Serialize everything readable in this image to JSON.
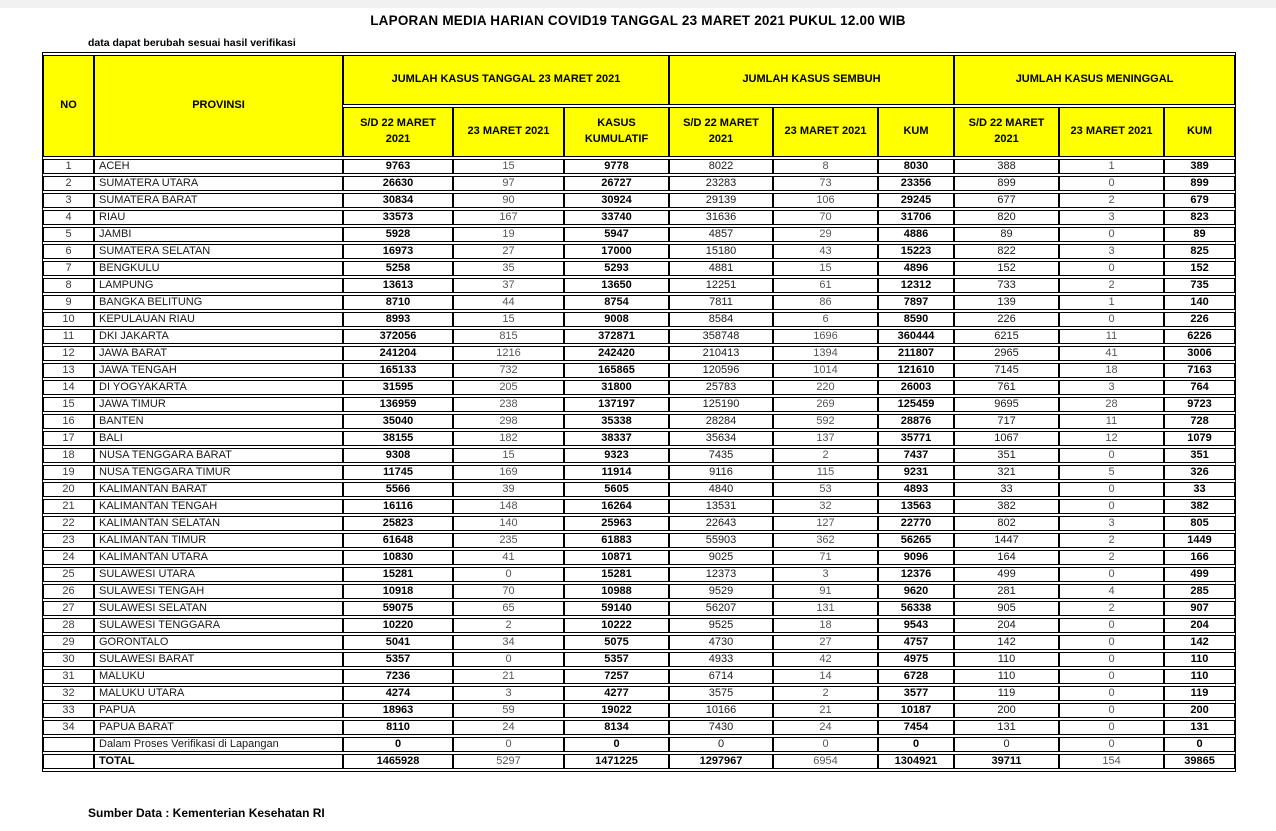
{
  "page": {
    "title": "LAPORAN MEDIA HARIAN COVID19 TANGGAL 23 MARET 2021 PUKUL 12.00 WIB",
    "note": "data dapat berubah sesuai hasil verifikasi",
    "source": "Sumber Data : Kementerian Kesehatan RI"
  },
  "colors": {
    "header_bg": "#FFFF00",
    "border": "#000000",
    "muted_number": "#555555"
  },
  "table": {
    "col_no": "NO",
    "col_provinsi": "PROVINSI",
    "groups": [
      {
        "label": "JUMLAH KASUS TANGGAL 23 MARET 2021",
        "subcolumns": [
          "S/D 22 MARET 2021",
          "23 MARET 2021",
          "KASUS KUMULATIF"
        ]
      },
      {
        "label": "JUMLAH KASUS SEMBUH",
        "subcolumns": [
          "S/D 22 MARET 2021",
          "23 MARET 2021",
          "KUM"
        ]
      },
      {
        "label": "JUMLAH KASUS MENINGGAL",
        "subcolumns": [
          "S/D 22 MARET 2021",
          "23 MARET 2021",
          "KUM"
        ]
      }
    ],
    "rows": [
      [
        1,
        "ACEH",
        9763,
        15,
        9778,
        8022,
        8,
        8030,
        388,
        1,
        389
      ],
      [
        2,
        "SUMATERA UTARA",
        26630,
        97,
        26727,
        23283,
        73,
        23356,
        899,
        0,
        899
      ],
      [
        3,
        "SUMATERA BARAT",
        30834,
        90,
        30924,
        29139,
        106,
        29245,
        677,
        2,
        679
      ],
      [
        4,
        "RIAU",
        33573,
        167,
        33740,
        31636,
        70,
        31706,
        820,
        3,
        823
      ],
      [
        5,
        "JAMBI",
        5928,
        19,
        5947,
        4857,
        29,
        4886,
        89,
        0,
        89
      ],
      [
        6,
        "SUMATERA SELATAN",
        16973,
        27,
        17000,
        15180,
        43,
        15223,
        822,
        3,
        825
      ],
      [
        7,
        "BENGKULU",
        5258,
        35,
        5293,
        4881,
        15,
        4896,
        152,
        0,
        152
      ],
      [
        8,
        "LAMPUNG",
        13613,
        37,
        13650,
        12251,
        61,
        12312,
        733,
        2,
        735
      ],
      [
        9,
        "BANGKA BELITUNG",
        8710,
        44,
        8754,
        7811,
        86,
        7897,
        139,
        1,
        140
      ],
      [
        10,
        "KEPULAUAN RIAU",
        8993,
        15,
        9008,
        8584,
        6,
        8590,
        226,
        0,
        226
      ],
      [
        11,
        "DKI JAKARTA",
        372056,
        815,
        372871,
        358748,
        1696,
        360444,
        6215,
        11,
        6226
      ],
      [
        12,
        "JAWA BARAT",
        241204,
        1216,
        242420,
        210413,
        1394,
        211807,
        2965,
        41,
        3006
      ],
      [
        13,
        "JAWA TENGAH",
        165133,
        732,
        165865,
        120596,
        1014,
        121610,
        7145,
        18,
        7163
      ],
      [
        14,
        "DI YOGYAKARTA",
        31595,
        205,
        31800,
        25783,
        220,
        26003,
        761,
        3,
        764
      ],
      [
        15,
        "JAWA TIMUR",
        136959,
        238,
        137197,
        125190,
        269,
        125459,
        9695,
        28,
        9723
      ],
      [
        16,
        "BANTEN",
        35040,
        298,
        35338,
        28284,
        592,
        28876,
        717,
        11,
        728
      ],
      [
        17,
        "BALI",
        38155,
        182,
        38337,
        35634,
        137,
        35771,
        1067,
        12,
        1079
      ],
      [
        18,
        "NUSA TENGGARA BARAT",
        9308,
        15,
        9323,
        7435,
        2,
        7437,
        351,
        0,
        351
      ],
      [
        19,
        "NUSA TENGGARA TIMUR",
        11745,
        169,
        11914,
        9116,
        115,
        9231,
        321,
        5,
        326
      ],
      [
        20,
        "KALIMANTAN BARAT",
        5566,
        39,
        5605,
        4840,
        53,
        4893,
        33,
        0,
        33
      ],
      [
        21,
        "KALIMANTAN TENGAH",
        16116,
        148,
        16264,
        13531,
        32,
        13563,
        382,
        0,
        382
      ],
      [
        22,
        "KALIMANTAN SELATAN",
        25823,
        140,
        25963,
        22643,
        127,
        22770,
        802,
        3,
        805
      ],
      [
        23,
        "KALIMANTAN TIMUR",
        61648,
        235,
        61883,
        55903,
        362,
        56265,
        1447,
        2,
        1449
      ],
      [
        24,
        "KALIMANTAN UTARA",
        10830,
        41,
        10871,
        9025,
        71,
        9096,
        164,
        2,
        166
      ],
      [
        25,
        "SULAWESI UTARA",
        15281,
        0,
        15281,
        12373,
        3,
        12376,
        499,
        0,
        499
      ],
      [
        26,
        "SULAWESI TENGAH",
        10918,
        70,
        10988,
        9529,
        91,
        9620,
        281,
        4,
        285
      ],
      [
        27,
        "SULAWESI SELATAN",
        59075,
        65,
        59140,
        56207,
        131,
        56338,
        905,
        2,
        907
      ],
      [
        28,
        "SULAWESI TENGGARA",
        10220,
        2,
        10222,
        9525,
        18,
        9543,
        204,
        0,
        204
      ],
      [
        29,
        "GORONTALO",
        5041,
        34,
        5075,
        4730,
        27,
        4757,
        142,
        0,
        142
      ],
      [
        30,
        "SULAWESI BARAT",
        5357,
        0,
        5357,
        4933,
        42,
        4975,
        110,
        0,
        110
      ],
      [
        31,
        "MALUKU",
        7236,
        21,
        7257,
        6714,
        14,
        6728,
        110,
        0,
        110
      ],
      [
        32,
        "MALUKU UTARA",
        4274,
        3,
        4277,
        3575,
        2,
        3577,
        119,
        0,
        119
      ],
      [
        33,
        "PAPUA",
        18963,
        59,
        19022,
        10166,
        21,
        10187,
        200,
        0,
        200
      ],
      [
        34,
        "PAPUA BARAT",
        8110,
        24,
        8134,
        7430,
        24,
        7454,
        131,
        0,
        131
      ]
    ],
    "verification_row": [
      "",
      "Dalam Proses Verifikasi di Lapangan",
      0,
      0,
      0,
      0,
      0,
      0,
      0,
      0,
      0
    ],
    "total_row": [
      "",
      "TOTAL",
      1465928,
      5297,
      1471225,
      1297967,
      6954,
      1304921,
      39711,
      154,
      39865
    ]
  }
}
